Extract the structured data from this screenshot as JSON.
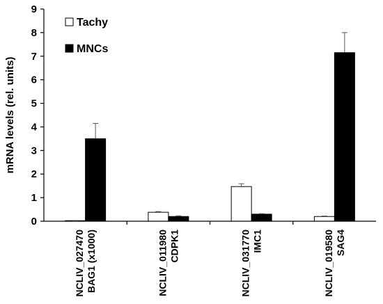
{
  "chart_data": {
    "type": "bar",
    "ylabel": "mRNA levels (rel. units)",
    "ylim": [
      0,
      9
    ],
    "yticks": [
      0,
      1,
      2,
      3,
      4,
      5,
      6,
      7,
      8,
      9
    ],
    "grid": false,
    "legend_position": "top-left",
    "categories": [
      {
        "lines": [
          "NCLIV_027470",
          "BAG1 (x1000)"
        ]
      },
      {
        "lines": [
          "NCLIV_011980",
          "CDPK1"
        ]
      },
      {
        "lines": [
          "NCLIV_031770",
          "IMC1"
        ]
      },
      {
        "lines": [
          "NCLIV_019580",
          "SAG4"
        ]
      }
    ],
    "series": [
      {
        "name": "Tachy",
        "color": "#ffffff",
        "values": [
          0.02,
          0.38,
          1.47,
          0.2
        ],
        "errors": [
          0.01,
          0.03,
          0.12,
          0.02
        ]
      },
      {
        "name": "MNCs",
        "color": "#000000",
        "values": [
          3.5,
          0.2,
          0.3,
          7.15
        ],
        "errors": [
          0.65,
          0.03,
          0.02,
          0.85
        ]
      }
    ]
  }
}
